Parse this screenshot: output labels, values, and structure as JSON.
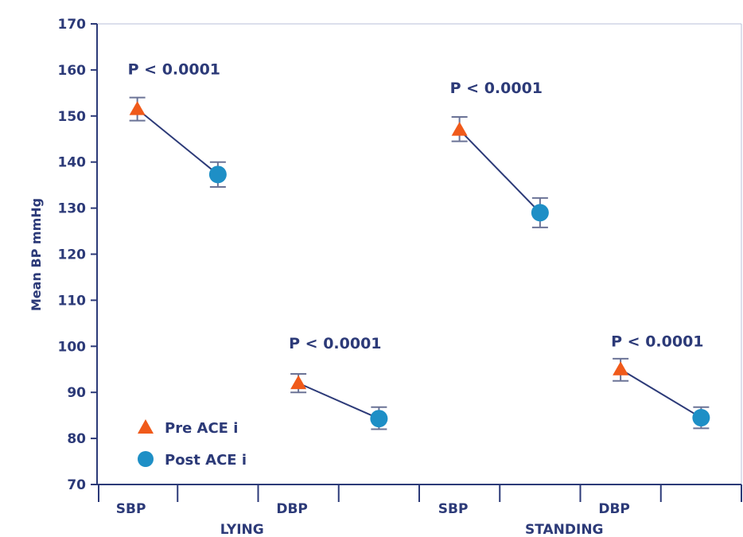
{
  "chart_data": {
    "type": "scatter",
    "ylabel": "Mean BP mmHg",
    "ylim": [
      70,
      170
    ],
    "yticks": [
      70,
      80,
      90,
      100,
      110,
      120,
      130,
      140,
      150,
      160,
      170
    ],
    "categories": [
      "SBP",
      "DBP",
      "SBP",
      "DBP"
    ],
    "groups": [
      "LYING",
      "STANDING"
    ],
    "grid": false,
    "legend_position": "bottom-left",
    "colors": {
      "pre": "#f05a1a",
      "post": "#1e8fc6",
      "axis": "#2c3a78"
    },
    "series": [
      {
        "name": "Pre ACE i",
        "marker": "triangle",
        "values": [
          151.5,
          92,
          147,
          95
        ],
        "err_low": [
          149,
          90,
          144.5,
          92.5
        ],
        "err_high": [
          154,
          94,
          149.8,
          97.3
        ]
      },
      {
        "name": "Post ACE i",
        "marker": "circle",
        "values": [
          137.3,
          84.3,
          129,
          84.5
        ],
        "err_low": [
          134.6,
          82,
          125.8,
          82.2
        ],
        "err_high": [
          140,
          86.8,
          132.2,
          86.8
        ]
      }
    ],
    "annotations": [
      "P < 0.0001",
      "P < 0.0001",
      "P < 0.0001",
      "P < 0.0001"
    ],
    "annotation_y": [
      159,
      99.5,
      155,
      100
    ]
  }
}
